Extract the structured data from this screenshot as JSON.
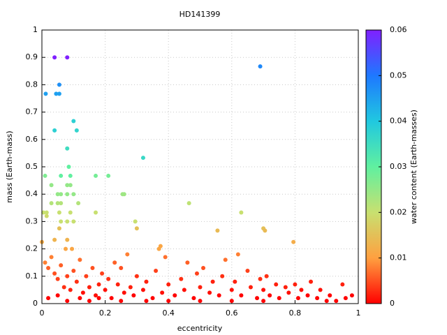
{
  "chart_data": {
    "type": "scatter",
    "title": "HD141399",
    "xlabel": "eccentricity",
    "ylabel": "mass (Earth-mass)",
    "colorbar_label": "water content (Earth-masses)",
    "xlim": [
      0,
      1
    ],
    "xticks": [
      0,
      0.2,
      0.4,
      0.6,
      0.8,
      1
    ],
    "ylim": [
      0,
      1
    ],
    "yticks": [
      0,
      0.1,
      0.2,
      0.3,
      0.4,
      0.5,
      0.6,
      0.7,
      0.8,
      0.9,
      1
    ],
    "clim": [
      0,
      0.06
    ],
    "cticks": [
      0,
      0.01,
      0.02,
      0.03,
      0.04,
      0.05,
      0.06
    ],
    "colormap": [
      "#ff0000",
      "#ffa040",
      "#c8e070",
      "#60f0a0",
      "#20c8e0",
      "#1e78ff",
      "#8020ff"
    ],
    "grid": true,
    "x": [
      0.04,
      0.08,
      0.69,
      0.055,
      0.012,
      0.045,
      0.055,
      0.1,
      0.04,
      0.11,
      0.08,
      0.32,
      0.085,
      0.01,
      0.06,
      0.09,
      0.17,
      0.21,
      0.03,
      0.08,
      0.09,
      0.05,
      0.06,
      0.08,
      0.1,
      0.255,
      0.26,
      0.03,
      0.05,
      0.06,
      0.115,
      0.465,
      0.005,
      0.015,
      0.055,
      0.09,
      0.17,
      0.63,
      0.015,
      0.06,
      0.08,
      0.1,
      0.295,
      0.3,
      0.055,
      0.555,
      0.7,
      0.705,
      0.04,
      0.08,
      0.795,
      0.0,
      0.075,
      0.095,
      0.375,
      0.37,
      0.01,
      0.02,
      0.03,
      0.04,
      0.05,
      0.06,
      0.07,
      0.08,
      0.09,
      0.1,
      0.11,
      0.12,
      0.13,
      0.14,
      0.15,
      0.16,
      0.17,
      0.18,
      0.19,
      0.2,
      0.21,
      0.22,
      0.23,
      0.24,
      0.25,
      0.26,
      0.27,
      0.28,
      0.29,
      0.3,
      0.32,
      0.33,
      0.35,
      0.36,
      0.38,
      0.39,
      0.4,
      0.42,
      0.44,
      0.45,
      0.46,
      0.48,
      0.49,
      0.5,
      0.51,
      0.53,
      0.54,
      0.56,
      0.57,
      0.58,
      0.6,
      0.61,
      0.62,
      0.63,
      0.65,
      0.66,
      0.68,
      0.69,
      0.7,
      0.71,
      0.72,
      0.74,
      0.75,
      0.77,
      0.78,
      0.8,
      0.81,
      0.82,
      0.84,
      0.85,
      0.87,
      0.88,
      0.9,
      0.91,
      0.93,
      0.95,
      0.96,
      0.98,
      0.02,
      0.05,
      0.08,
      0.12,
      0.15,
      0.18,
      0.25,
      0.33,
      0.4,
      0.5,
      0.6,
      0.7
    ],
    "values": [
      0.9,
      0.9,
      0.867,
      0.8,
      0.767,
      0.767,
      0.767,
      0.667,
      0.633,
      0.633,
      0.567,
      0.533,
      0.5,
      0.467,
      0.467,
      0.467,
      0.467,
      0.467,
      0.433,
      0.433,
      0.433,
      0.4,
      0.4,
      0.4,
      0.4,
      0.4,
      0.4,
      0.367,
      0.367,
      0.367,
      0.367,
      0.367,
      0.333,
      0.333,
      0.333,
      0.333,
      0.333,
      0.333,
      0.32,
      0.3,
      0.3,
      0.3,
      0.3,
      0.275,
      0.275,
      0.267,
      0.275,
      0.267,
      0.233,
      0.233,
      0.225,
      0.225,
      0.2,
      0.2,
      0.21,
      0.2,
      0.15,
      0.13,
      0.17,
      0.11,
      0.09,
      0.14,
      0.06,
      0.1,
      0.05,
      0.12,
      0.08,
      0.16,
      0.04,
      0.1,
      0.06,
      0.13,
      0.03,
      0.07,
      0.11,
      0.05,
      0.09,
      0.02,
      0.15,
      0.07,
      0.13,
      0.04,
      0.18,
      0.06,
      0.03,
      0.1,
      0.05,
      0.08,
      0.02,
      0.12,
      0.04,
      0.17,
      0.07,
      0.03,
      0.09,
      0.05,
      0.15,
      0.02,
      0.11,
      0.06,
      0.13,
      0.04,
      0.08,
      0.03,
      0.1,
      0.16,
      0.05,
      0.08,
      0.18,
      0.03,
      0.12,
      0.06,
      0.02,
      0.09,
      0.05,
      0.1,
      0.03,
      0.07,
      0.02,
      0.06,
      0.04,
      0.07,
      0.02,
      0.05,
      0.03,
      0.08,
      0.02,
      0.05,
      0.01,
      0.03,
      0.01,
      0.07,
      0.02,
      0.03,
      0.02,
      0.03,
      0.01,
      0.02,
      0.01,
      0.02,
      0.01,
      0.01,
      0.01,
      0.01,
      0.01,
      0.01
    ],
    "water": [
      0.06,
      0.06,
      0.048,
      0.047,
      0.045,
      0.045,
      0.045,
      0.038,
      0.038,
      0.037,
      0.035,
      0.036,
      0.03,
      0.027,
      0.03,
      0.03,
      0.028,
      0.028,
      0.025,
      0.025,
      0.025,
      0.025,
      0.025,
      0.025,
      0.025,
      0.024,
      0.024,
      0.022,
      0.022,
      0.022,
      0.022,
      0.021,
      0.02,
      0.02,
      0.02,
      0.02,
      0.02,
      0.02,
      0.019,
      0.02,
      0.02,
      0.02,
      0.02,
      0.015,
      0.015,
      0.014,
      0.015,
      0.014,
      0.013,
      0.013,
      0.012,
      0.012,
      0.011,
      0.011,
      0.011,
      0.011,
      0.008,
      0.006,
      0.008,
      0.005,
      0.004,
      0.006,
      0.003,
      0.004,
      0.002,
      0.005,
      0.003,
      0.007,
      0.001,
      0.004,
      0.002,
      0.005,
      0.001,
      0.002,
      0.004,
      0.001,
      0.003,
      0,
      0.006,
      0.002,
      0.005,
      0.001,
      0.008,
      0.002,
      0,
      0.003,
      0.001,
      0.002,
      0,
      0.004,
      0.001,
      0.007,
      0.002,
      0,
      0.003,
      0.001,
      0.006,
      0,
      0.004,
      0.002,
      0.005,
      0.001,
      0.002,
      0,
      0.003,
      0.007,
      0.001,
      0.002,
      0.008,
      0,
      0.004,
      0.002,
      0,
      0.003,
      0.001,
      0.003,
      0,
      0.002,
      0,
      0.002,
      0.001,
      0.002,
      0,
      0.001,
      0,
      0.002,
      0,
      0.001,
      0,
      0,
      0,
      0.002,
      0,
      0,
      0,
      0,
      0,
      0,
      0,
      0,
      0,
      0,
      0,
      0,
      0,
      0
    ]
  }
}
